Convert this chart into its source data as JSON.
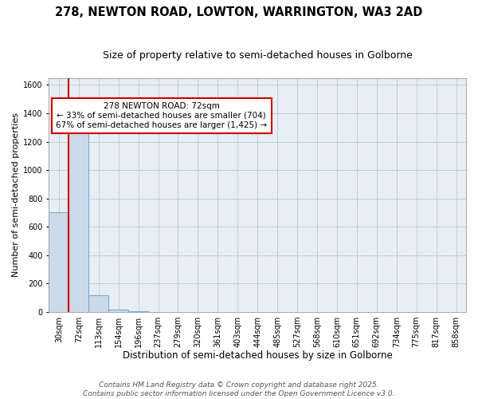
{
  "title": "278, NEWTON ROAD, LOWTON, WARRINGTON, WA3 2AD",
  "subtitle": "Size of property relative to semi-detached houses in Golborne",
  "xlabel": "Distribution of semi-detached houses by size in Golborne",
  "ylabel": "Number of semi-detached properties",
  "footer_line1": "Contains HM Land Registry data © Crown copyright and database right 2025.",
  "footer_line2": "Contains public sector information licensed under the Open Government Licence v3.0.",
  "categories": [
    "30sqm",
    "72sqm",
    "113sqm",
    "154sqm",
    "196sqm",
    "237sqm",
    "279sqm",
    "320sqm",
    "361sqm",
    "403sqm",
    "444sqm",
    "485sqm",
    "527sqm",
    "568sqm",
    "610sqm",
    "651sqm",
    "692sqm",
    "734sqm",
    "775sqm",
    "817sqm",
    "858sqm"
  ],
  "values": [
    704,
    1300,
    120,
    18,
    4,
    0,
    0,
    0,
    0,
    0,
    0,
    0,
    0,
    0,
    0,
    0,
    0,
    0,
    0,
    0,
    0
  ],
  "bar_color": "#ccd9e8",
  "bar_edge_color": "#6699cc",
  "highlight_index": 1,
  "highlight_line_color": "#cc0000",
  "annotation_line1": "278 NEWTON ROAD: 72sqm",
  "annotation_line2": "← 33% of semi-detached houses are smaller (704)",
  "annotation_line3": "67% of semi-detached houses are larger (1,425) →",
  "annotation_box_color": "#ffffff",
  "annotation_box_edge_color": "#cc0000",
  "background_color": "#ffffff",
  "plot_bg_color": "#e8eef5",
  "grid_color": "#b8c8d8",
  "ylim": [
    0,
    1650
  ],
  "yticks": [
    0,
    200,
    400,
    600,
    800,
    1000,
    1200,
    1400,
    1600
  ],
  "title_fontsize": 10.5,
  "subtitle_fontsize": 9,
  "xlabel_fontsize": 8.5,
  "ylabel_fontsize": 8,
  "tick_fontsize": 7,
  "annotation_fontsize": 7.5,
  "footer_fontsize": 6.5
}
